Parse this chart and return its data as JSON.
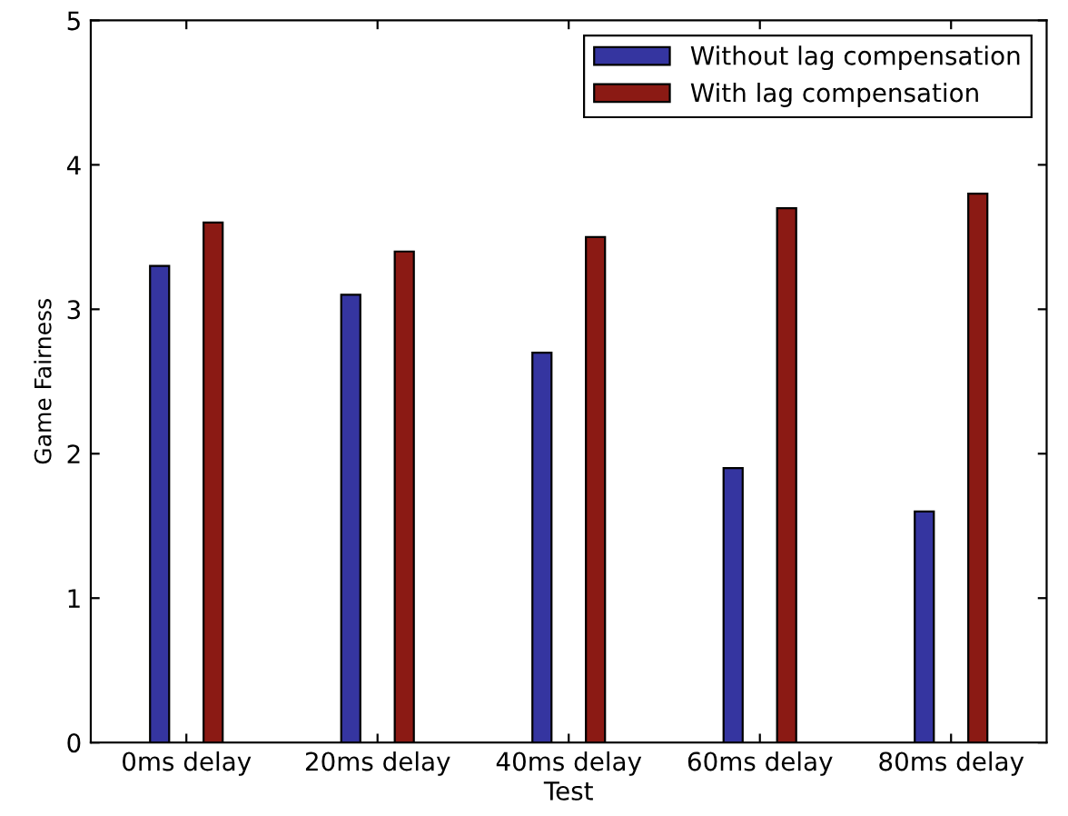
{
  "chart_data": {
    "type": "bar",
    "xlabel": "Test",
    "ylabel": "Game Fairness",
    "categories": [
      "0ms delay",
      "20ms delay",
      "40ms delay",
      "60ms delay",
      "80ms delay"
    ],
    "series": [
      {
        "name": "Without lag compensation",
        "color": "#3535a0",
        "values": [
          3.3,
          3.1,
          2.7,
          1.9,
          1.6
        ]
      },
      {
        "name": "With lag compensation",
        "color": "#8b1a14",
        "values": [
          3.6,
          3.4,
          3.5,
          3.7,
          3.8
        ]
      }
    ],
    "ylim": [
      0,
      5
    ],
    "yticks": [
      0,
      1,
      2,
      3,
      4,
      5
    ],
    "grid": false,
    "legend": "top right"
  }
}
